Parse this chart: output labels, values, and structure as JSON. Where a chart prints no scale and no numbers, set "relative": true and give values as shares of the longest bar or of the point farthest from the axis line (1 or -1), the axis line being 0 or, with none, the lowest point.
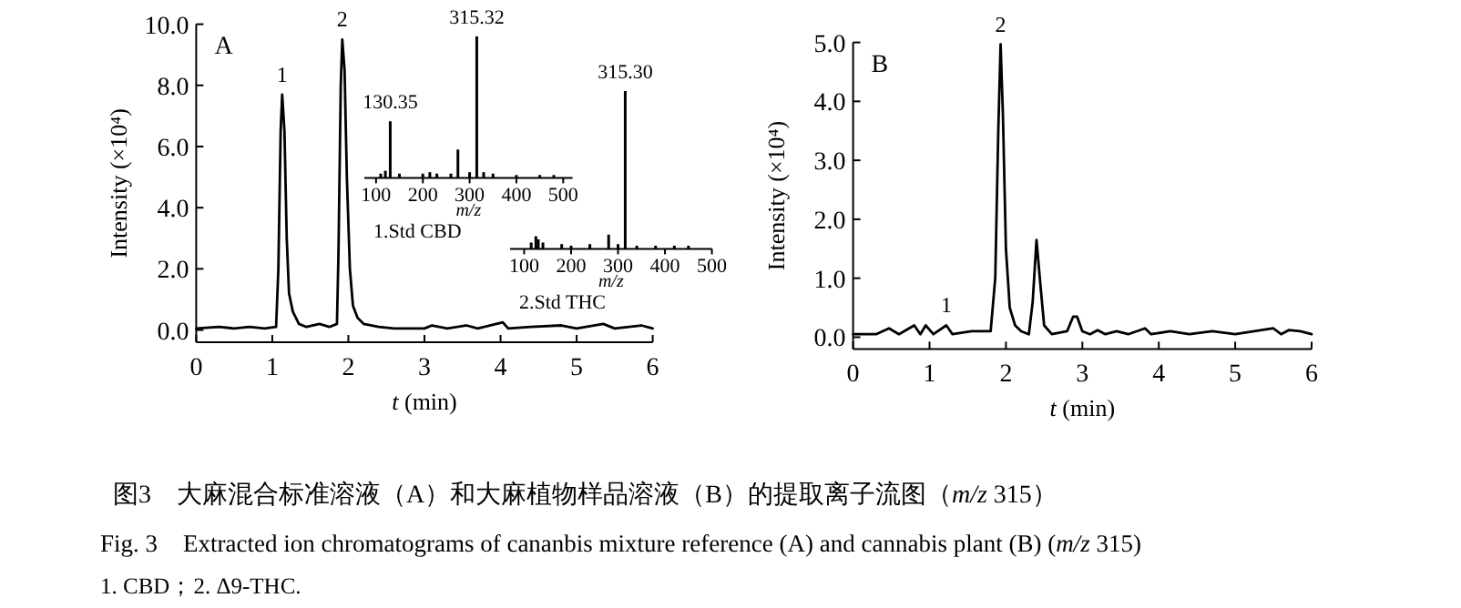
{
  "chart_data": [
    {
      "type": "line",
      "xlabel": "t (min)",
      "ylabel": "Intensity (×10⁴)",
      "xlim": [
        0,
        6
      ],
      "ylim": [
        -0.4,
        10.0
      ],
      "xticks": [
        0,
        1,
        2,
        3,
        4,
        5,
        6
      ],
      "yticks": [
        {
          "value": 0,
          "label": "0.0"
        },
        {
          "value": 2,
          "label": "2.0"
        },
        {
          "value": 4,
          "label": "4.0"
        },
        {
          "value": 6,
          "label": "6.0"
        },
        {
          "value": 8,
          "label": "8.0"
        },
        {
          "value": 10,
          "label": "10.0"
        }
      ],
      "series": [
        {
          "color": "#000000",
          "x": [
            0,
            0.3,
            0.5,
            0.7,
            0.9,
            1.05,
            1.08,
            1.11,
            1.13,
            1.16,
            1.19,
            1.22,
            1.27,
            1.35,
            1.45,
            1.62,
            1.75,
            1.85,
            1.87,
            1.9,
            1.92,
            1.95,
            1.98,
            2.02,
            2.06,
            2.12,
            2.2,
            2.4,
            2.6,
            3.0,
            3.1,
            3.3,
            3.55,
            3.7,
            4.03,
            4.1,
            4.4,
            4.8,
            5.0,
            5.35,
            5.5,
            5.85,
            6.0
          ],
          "values": [
            0.05,
            0.1,
            0.05,
            0.1,
            0.05,
            0.1,
            2,
            6.5,
            7.7,
            6.5,
            3,
            1.2,
            0.6,
            0.2,
            0.1,
            0.2,
            0.1,
            0.2,
            2.5,
            8,
            9.5,
            8.5,
            5,
            2,
            0.8,
            0.4,
            0.2,
            0.1,
            0.05,
            0.05,
            0.15,
            0.05,
            0.15,
            0.05,
            0.25,
            0.05,
            0.1,
            0.15,
            0.05,
            0.2,
            0.05,
            0.15,
            0.05
          ]
        }
      ],
      "annotations": [
        "A",
        {
          "text": "1",
          "x": 1.13,
          "y": 7.7
        },
        {
          "text": "2",
          "x": 1.92,
          "y": 9.5
        },
        "图3　大麻混合标准溶液（A）和大麻植物样品溶液（B）的提取离子流图（m/z 315）",
        "Fig. 3　Extracted ion chromatograms of cananbis mixture reference (A) and cannabis plant (B) (m/z 315)",
        "1. CBD；2. Δ9-THC."
      ]
    },
    {
      "type": "bar",
      "relative": true,
      "title": "1.Std CBD",
      "xlabel": "m/z",
      "xlim": [
        75,
        520
      ],
      "xticks": [
        100,
        200,
        300,
        400,
        500
      ],
      "series": [
        {
          "color": "#000000",
          "x": [
            110,
            120,
            130.35,
            150,
            200,
            215,
            230,
            260,
            275,
            300,
            315.32,
            330,
            350,
            400,
            450,
            480
          ],
          "values": [
            0.03,
            0.05,
            0.4,
            0.03,
            0.03,
            0.04,
            0.03,
            0.03,
            0.2,
            0.04,
            1,
            0.04,
            0.03,
            0.02,
            0.02,
            0.02
          ]
        }
      ],
      "annotations": [
        {
          "text": "130.35",
          "x": 130.35,
          "y": 0.4
        },
        {
          "text": "315.32",
          "x": 315.32,
          "y": 1
        }
      ]
    },
    {
      "type": "bar",
      "relative": true,
      "title": "2.Std THC",
      "xlabel": "m/z",
      "xlim": [
        70,
        500
      ],
      "xticks": [
        100,
        200,
        300,
        400,
        500
      ],
      "series": [
        {
          "color": "#000000",
          "x": [
            115,
            125,
            130,
            140,
            180,
            200,
            240,
            280,
            300,
            315.3,
            340,
            380,
            420,
            450
          ],
          "values": [
            0.04,
            0.08,
            0.06,
            0.04,
            0.03,
            0.02,
            0.03,
            0.09,
            0.03,
            1,
            0.02,
            0.02,
            0.02,
            0.02
          ]
        }
      ],
      "annotations": [
        {
          "text": "315.30",
          "x": 315.3,
          "y": 1
        }
      ]
    },
    {
      "type": "line",
      "xlabel": "t (min)",
      "ylabel": "Intensity (×10⁴)",
      "xlim": [
        0,
        6
      ],
      "ylim": [
        -0.2,
        5.0
      ],
      "xticks": [
        0,
        1,
        2,
        3,
        4,
        5,
        6
      ],
      "yticks": [
        {
          "value": 0,
          "label": "0.0"
        },
        {
          "value": 1,
          "label": "1.0"
        },
        {
          "value": 2,
          "label": "2.0"
        },
        {
          "value": 3,
          "label": "3.0"
        },
        {
          "value": 4,
          "label": "4.0"
        },
        {
          "value": 5,
          "label": "5.0"
        }
      ],
      "series": [
        {
          "color": "#000000",
          "x": [
            0,
            0.3,
            0.47,
            0.6,
            0.8,
            0.88,
            0.95,
            1.05,
            1.22,
            1.3,
            1.55,
            1.8,
            1.86,
            1.9,
            1.93,
            1.96,
            2.0,
            2.05,
            2.12,
            2.2,
            2.3,
            2.35,
            2.4,
            2.45,
            2.5,
            2.6,
            2.8,
            2.88,
            2.93,
            3.0,
            3.1,
            3.2,
            3.3,
            3.45,
            3.6,
            3.82,
            3.9,
            4.15,
            4.4,
            4.7,
            5.0,
            5.5,
            5.6,
            5.7,
            5.85,
            6.0
          ],
          "values": [
            0.05,
            0.05,
            0.15,
            0.05,
            0.2,
            0.05,
            0.2,
            0.05,
            0.2,
            0.05,
            0.1,
            0.1,
            1,
            3.5,
            4.97,
            3.8,
            1.5,
            0.5,
            0.2,
            0.1,
            0.05,
            0.6,
            1.65,
            0.9,
            0.2,
            0.05,
            0.1,
            0.35,
            0.35,
            0.1,
            0.05,
            0.12,
            0.05,
            0.1,
            0.05,
            0.15,
            0.05,
            0.1,
            0.05,
            0.1,
            0.05,
            0.15,
            0.05,
            0.12,
            0.1,
            0.05
          ]
        }
      ],
      "annotations": [
        "B",
        {
          "text": "1",
          "x": 1.22,
          "y": 0.2
        },
        {
          "text": "2",
          "x": 1.93,
          "y": 4.97
        }
      ]
    }
  ]
}
